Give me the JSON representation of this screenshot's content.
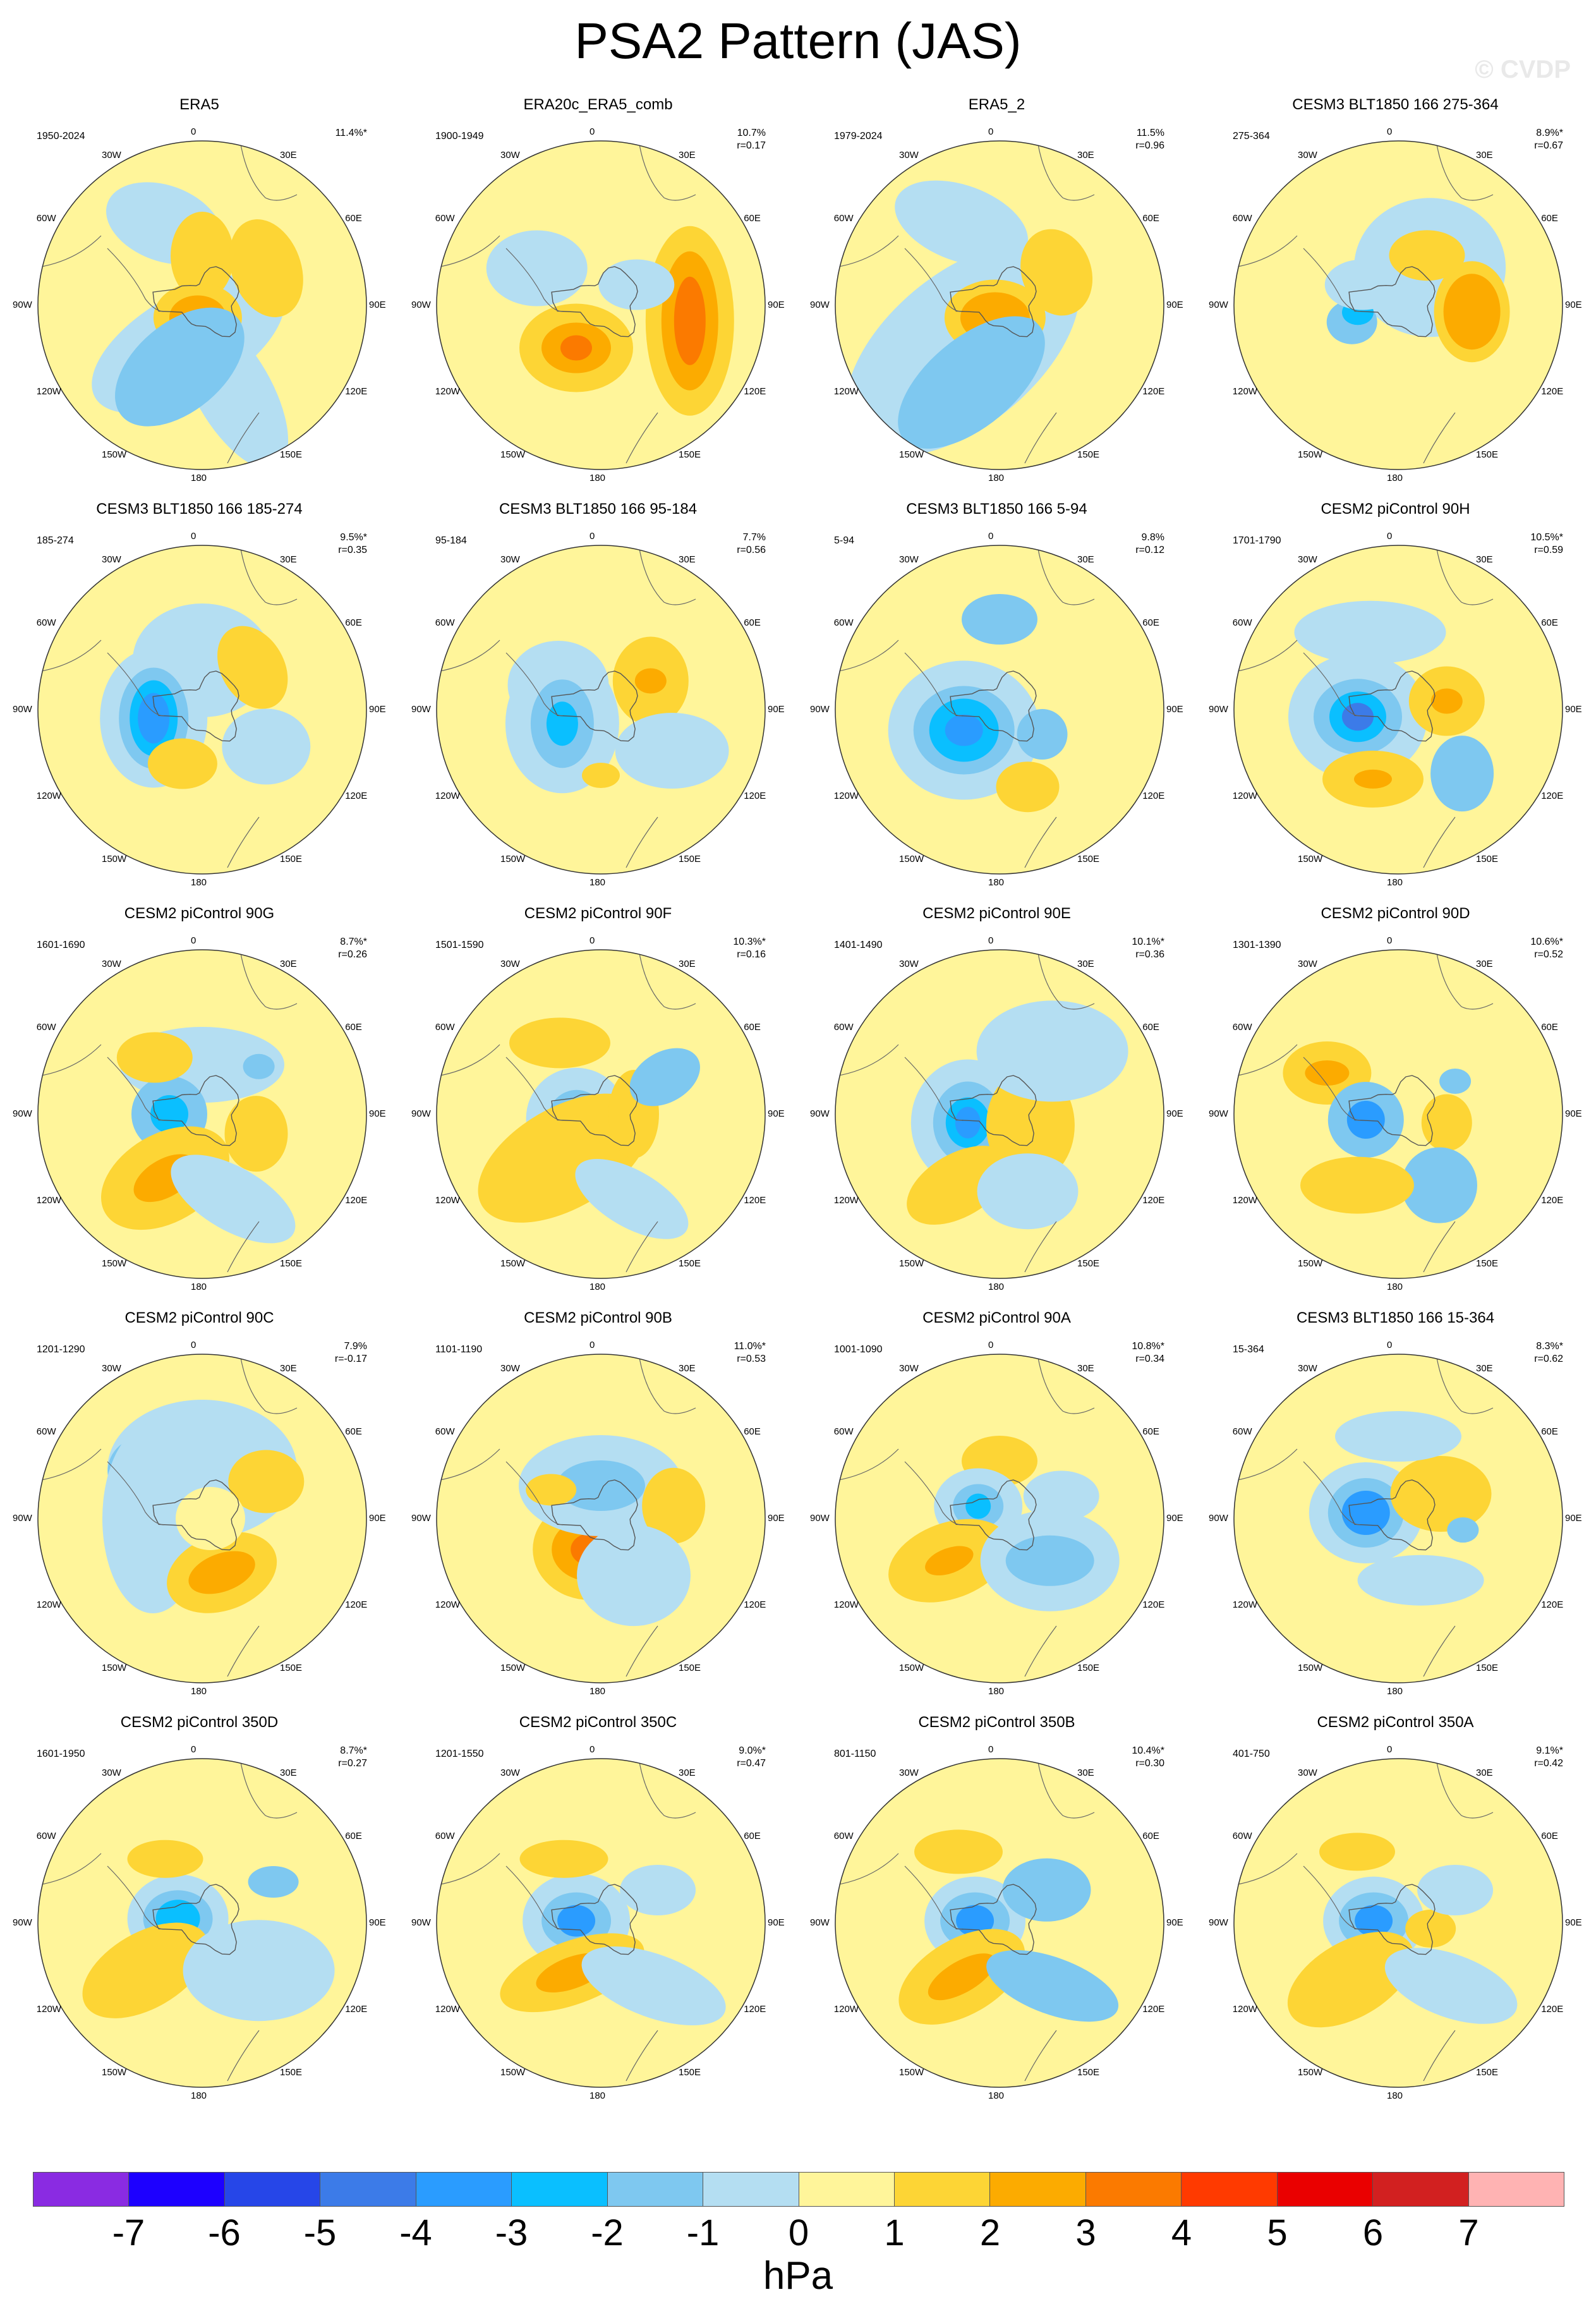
{
  "title": "PSA2 Pattern (JAS)",
  "watermark": "© CVDP",
  "units": "hPa",
  "colorbar": {
    "colors": [
      "#8a2be2",
      "#1d00ff",
      "#2646e8",
      "#3c7be8",
      "#2a9cff",
      "#0abfff",
      "#7ec8f0",
      "#b4def2",
      "#fff59a",
      "#fdd535",
      "#fcab00",
      "#fb7a00",
      "#ff3a00",
      "#ea0000",
      "#d22020",
      "#ffb3b3"
    ],
    "ticks": [
      "-7",
      "-6",
      "-5",
      "-4",
      "-3",
      "-2",
      "-1",
      "0",
      "1",
      "2",
      "3",
      "4",
      "5",
      "6",
      "7"
    ]
  },
  "lon_labels": [
    "0",
    "30E",
    "60E",
    "90E",
    "120E",
    "150E",
    "180",
    "150W",
    "120W",
    "90W",
    "60W",
    "30W"
  ],
  "panels": [
    {
      "title": "ERA5",
      "period": "1950-2024",
      "pct": "11.4%*",
      "r": ""
    },
    {
      "title": "ERA20c_ERA5_comb",
      "period": "1900-1949",
      "pct": "10.7%",
      "r": "r=0.17"
    },
    {
      "title": "ERA5_2",
      "period": "1979-2024",
      "pct": "11.5%",
      "r": "r=0.96"
    },
    {
      "title": "CESM3 BLT1850 166 275-364",
      "period": "275-364",
      "pct": "8.9%*",
      "r": "r=0.67"
    },
    {
      "title": "CESM3 BLT1850 166 185-274",
      "period": "185-274",
      "pct": "9.5%*",
      "r": "r=0.35"
    },
    {
      "title": "CESM3 BLT1850 166 95-184",
      "period": "95-184",
      "pct": "7.7%",
      "r": "r=0.56"
    },
    {
      "title": "CESM3 BLT1850 166 5-94",
      "period": "5-94",
      "pct": "9.8%",
      "r": "r=0.12"
    },
    {
      "title": "CESM2 piControl 90H",
      "period": "1701-1790",
      "pct": "10.5%*",
      "r": "r=0.59"
    },
    {
      "title": "CESM2 piControl 90G",
      "period": "1601-1690",
      "pct": "8.7%*",
      "r": "r=0.26"
    },
    {
      "title": "CESM2 piControl 90F",
      "period": "1501-1590",
      "pct": "10.3%*",
      "r": "r=0.16"
    },
    {
      "title": "CESM2 piControl 90E",
      "period": "1401-1490",
      "pct": "10.1%*",
      "r": "r=0.36"
    },
    {
      "title": "CESM2 piControl 90D",
      "period": "1301-1390",
      "pct": "10.6%*",
      "r": "r=0.52"
    },
    {
      "title": "CESM2 piControl 90C",
      "period": "1201-1290",
      "pct": "7.9%",
      "r": "r=-0.17"
    },
    {
      "title": "CESM2 piControl 90B",
      "period": "1101-1190",
      "pct": "11.0%*",
      "r": "r=0.53"
    },
    {
      "title": "CESM2 piControl 90A",
      "period": "1001-1090",
      "pct": "10.8%*",
      "r": "r=0.34"
    },
    {
      "title": "CESM3 BLT1850 166 15-364",
      "period": "15-364",
      "pct": "8.3%*",
      "r": "r=0.62"
    },
    {
      "title": "CESM2 piControl 350D",
      "period": "1601-1950",
      "pct": "8.7%*",
      "r": "r=0.27"
    },
    {
      "title": "CESM2 piControl 350C",
      "period": "1201-1550",
      "pct": "9.0%*",
      "r": "r=0.47"
    },
    {
      "title": "CESM2 piControl 350B",
      "period": "801-1150",
      "pct": "10.4%*",
      "r": "r=0.30"
    },
    {
      "title": "CESM2 piControl 350A",
      "period": "401-750",
      "pct": "9.1%*",
      "r": "r=0.42"
    }
  ]
}
